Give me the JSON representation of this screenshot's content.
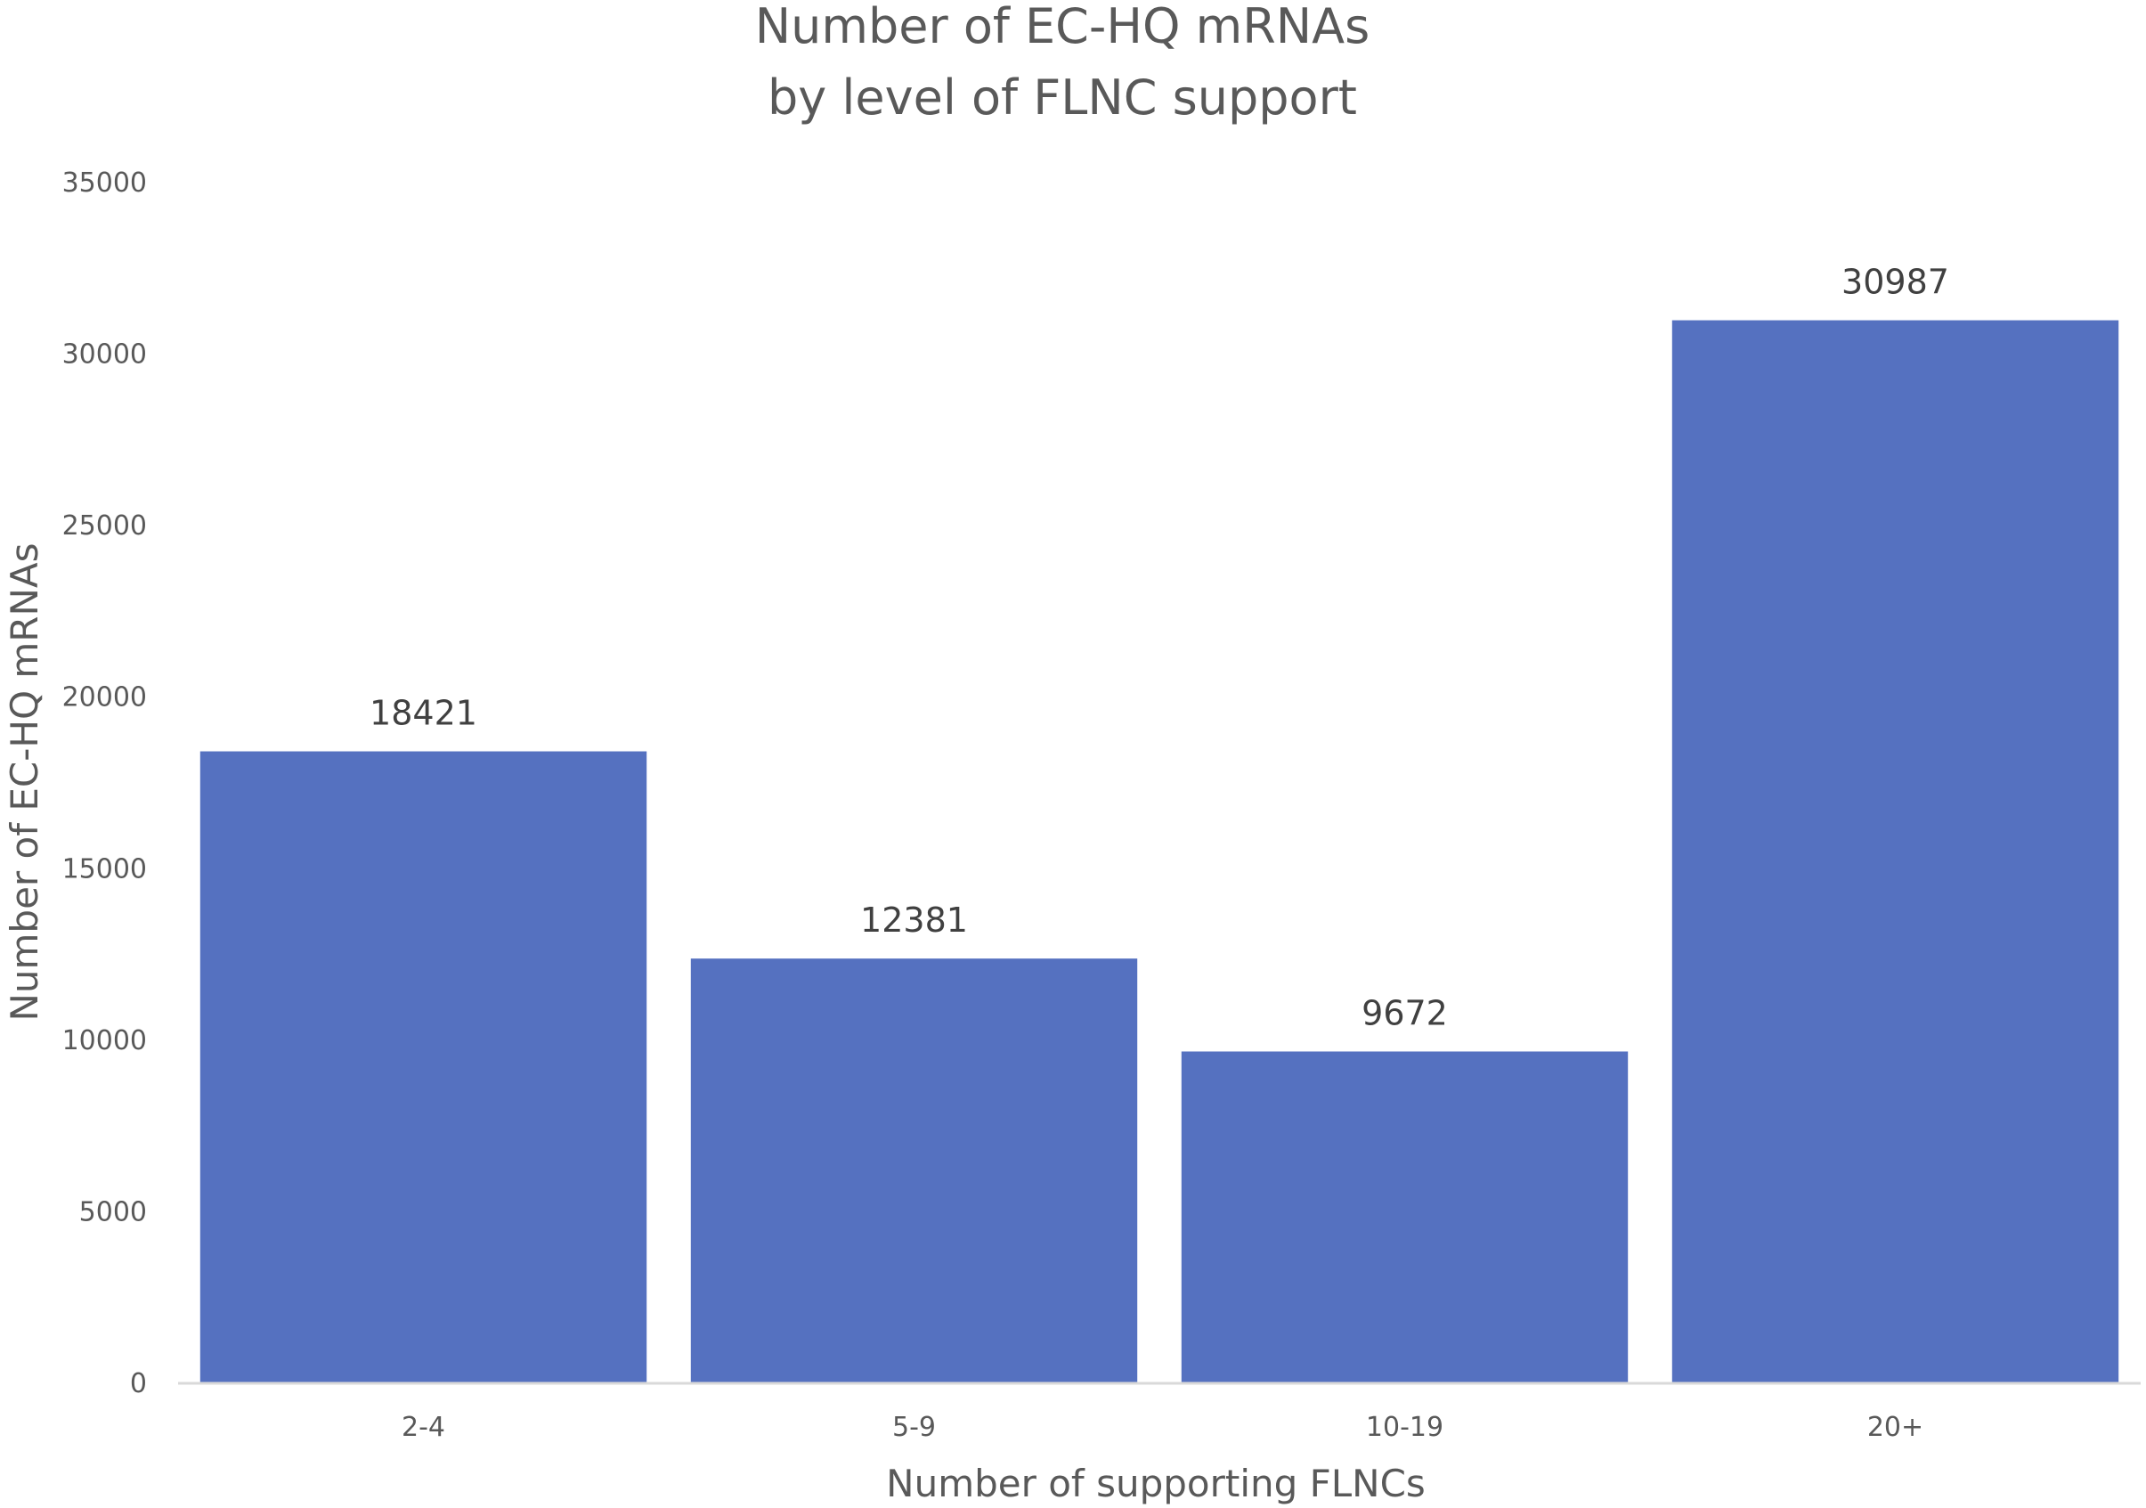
{
  "chart_data": {
    "type": "bar",
    "title": "Number of EC-HQ mRNAs",
    "subtitle": "by level of FLNC support",
    "xlabel": "Number of supporting FLNCs",
    "ylabel": "Number of EC-HQ mRNAs",
    "categories": [
      "2-4",
      "5-9",
      "10-19",
      "20+"
    ],
    "values": [
      18421,
      12381,
      9672,
      30987
    ],
    "data_labels": [
      "18421",
      "12381",
      "9672",
      "30987"
    ],
    "ylim": [
      0,
      35000
    ],
    "yticks": [
      "0",
      "5000",
      "10000",
      "15000",
      "20000",
      "25000",
      "30000",
      "35000"
    ],
    "grid": false,
    "legend": "none",
    "bar_color": "#5571C0",
    "axis_color": "#D9D9D9"
  }
}
